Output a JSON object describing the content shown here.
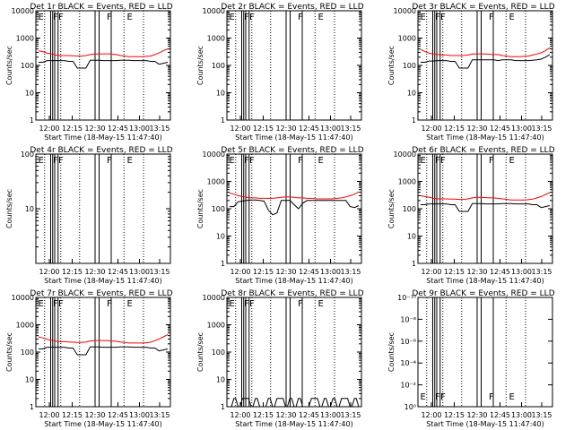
{
  "colors": {
    "events": "#000000",
    "lld": "#ff0000",
    "axis": "#000000",
    "dotted": "#000000"
  },
  "common": {
    "xlabel": "Start Time (18-May-15 11:47:40)",
    "ylabel": "Counts/sec",
    "x_ticks": [
      "12:00",
      "12:15",
      "12:30",
      "12:45",
      "13:00",
      "13:15"
    ],
    "log_ticks_A": [
      "1",
      "10",
      "100",
      "1000",
      "10000"
    ],
    "log_ticks_B": [
      "10",
      "100"
    ],
    "log_ticks_C": [
      "10⁰",
      "10⁻²",
      "10⁻⁴",
      "10⁻⁶",
      "10⁻⁸",
      "10⁻¹⁰"
    ],
    "marker_letters": [
      "E",
      "F",
      "F",
      "F",
      "E"
    ]
  },
  "chart_data": [
    {
      "type": "line",
      "title": "Det 1r BLACK = Events, RED = LLD",
      "scale": "A",
      "series": [
        {
          "name": "Events",
          "values": [
            130,
            130,
            150,
            150,
            150,
            150,
            150,
            140,
            140,
            80,
            80,
            80,
            155,
            155,
            155,
            150,
            150,
            150,
            150,
            155,
            155,
            155,
            150,
            150,
            150,
            150,
            140,
            140,
            110,
            120,
            130
          ]
        },
        {
          "name": "LLD",
          "values": [
            340,
            320,
            280,
            260,
            240,
            230,
            230,
            230,
            225,
            220,
            220,
            230,
            250,
            260,
            260,
            265,
            265,
            260,
            250,
            230,
            220,
            210,
            210,
            210,
            210,
            215,
            220,
            250,
            290,
            350,
            400
          ]
        }
      ]
    },
    {
      "type": "line",
      "title": "Det 2r BLACK = Events, RED = LLD",
      "scale": "A",
      "series": []
    },
    {
      "type": "line",
      "title": "Det 3r BLACK = Events, RED = LLD",
      "scale": "A",
      "series": [
        {
          "name": "Events",
          "values": [
            130,
            130,
            145,
            145,
            150,
            150,
            150,
            140,
            140,
            80,
            80,
            80,
            160,
            160,
            160,
            160,
            160,
            160,
            150,
            160,
            160,
            160,
            150,
            150,
            150,
            150,
            155,
            160,
            170,
            200,
            250
          ]
        },
        {
          "name": "LLD",
          "values": [
            380,
            320,
            280,
            260,
            250,
            240,
            240,
            230,
            230,
            230,
            230,
            240,
            260,
            265,
            265,
            260,
            255,
            250,
            250,
            230,
            220,
            210,
            210,
            210,
            215,
            220,
            240,
            260,
            290,
            350,
            440
          ]
        }
      ]
    },
    {
      "type": "line",
      "title": "Det 4r BLACK = Events, RED = LLD",
      "scale": "B",
      "series": []
    },
    {
      "type": "line",
      "title": "Det 5r BLACK = Events, RED = LLD",
      "scale": "A",
      "series": [
        {
          "name": "Events",
          "values": [
            120,
            120,
            180,
            190,
            200,
            210,
            210,
            200,
            190,
            90,
            60,
            70,
            200,
            200,
            200,
            140,
            100,
            160,
            200,
            200,
            200,
            200,
            200,
            200,
            200,
            200,
            200,
            200,
            120,
            110,
            130
          ]
        },
        {
          "name": "LLD",
          "values": [
            380,
            340,
            300,
            280,
            260,
            250,
            250,
            240,
            240,
            240,
            240,
            250,
            260,
            270,
            270,
            260,
            250,
            250,
            240,
            240,
            230,
            230,
            230,
            230,
            230,
            240,
            250,
            270,
            300,
            340,
            420
          ]
        }
      ]
    },
    {
      "type": "line",
      "title": "Det 6r BLACK = Events, RED = LLD",
      "scale": "A",
      "series": [
        {
          "name": "Events",
          "values": [
            140,
            140,
            150,
            150,
            150,
            150,
            150,
            140,
            140,
            80,
            80,
            80,
            155,
            155,
            155,
            150,
            150,
            150,
            150,
            155,
            155,
            155,
            150,
            150,
            150,
            150,
            140,
            140,
            110,
            120,
            130
          ]
        },
        {
          "name": "LLD",
          "values": [
            300,
            280,
            260,
            240,
            230,
            230,
            230,
            225,
            225,
            220,
            220,
            230,
            250,
            260,
            260,
            255,
            250,
            250,
            240,
            230,
            220,
            210,
            210,
            210,
            210,
            215,
            225,
            250,
            280,
            330,
            390
          ]
        }
      ]
    },
    {
      "type": "line",
      "title": "Det 7r BLACK = Events, RED = LLD",
      "scale": "A",
      "series": [
        {
          "name": "Events",
          "values": [
            130,
            130,
            150,
            150,
            150,
            150,
            150,
            140,
            140,
            80,
            80,
            80,
            155,
            155,
            155,
            150,
            150,
            150,
            150,
            155,
            155,
            155,
            150,
            150,
            150,
            150,
            140,
            140,
            110,
            120,
            130
          ]
        },
        {
          "name": "LLD",
          "values": [
            360,
            330,
            290,
            270,
            250,
            240,
            240,
            235,
            230,
            225,
            225,
            235,
            255,
            265,
            265,
            265,
            260,
            255,
            250,
            235,
            225,
            215,
            215,
            215,
            215,
            220,
            230,
            260,
            300,
            360,
            440
          ]
        }
      ]
    },
    {
      "type": "line",
      "title": "Det 8r BLACK = Events, RED = LLD",
      "scale": "A",
      "series": [
        {
          "name": "Events",
          "values": [
            1,
            2,
            1,
            2,
            2,
            1,
            2,
            1,
            1,
            2,
            1,
            2,
            2,
            1,
            2,
            1,
            2,
            1,
            1,
            2,
            2,
            1,
            2,
            1,
            2,
            1,
            2,
            2,
            1,
            2,
            1
          ]
        }
      ]
    },
    {
      "type": "line",
      "title": "Det 9r BLACK = Events, RED = LLD",
      "scale": "C",
      "series": []
    }
  ]
}
